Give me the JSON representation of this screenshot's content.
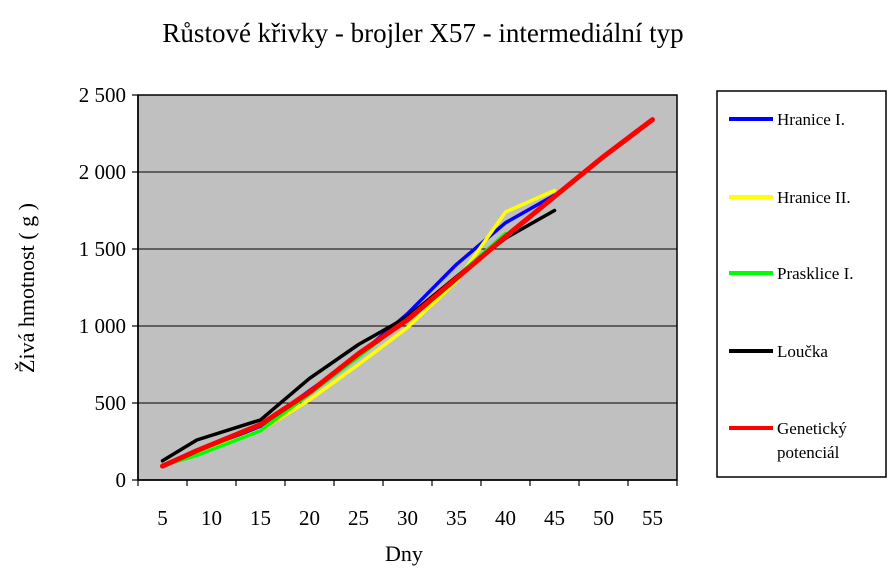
{
  "chart_data": {
    "type": "line",
    "title": "Růstové křivky  - brojler X57 - intermediální  typ",
    "xlabel": "Dny",
    "ylabel": "Živá hmotnost ( g )",
    "xlim": [
      5,
      55
    ],
    "ylim": [
      0,
      2500
    ],
    "x_ticks": [
      "5",
      "10",
      "15",
      "20",
      "25",
      "30",
      "35",
      "40",
      "45",
      "50",
      "55"
    ],
    "y_ticks": [
      {
        "value": 0,
        "label": "0"
      },
      {
        "value": 500,
        "label": "500"
      },
      {
        "value": 1000,
        "label": "1 000"
      },
      {
        "value": 1500,
        "label": "1 500"
      },
      {
        "value": 2000,
        "label": "2 000"
      },
      {
        "value": 2500,
        "label": "2 500"
      }
    ],
    "grid": true,
    "plot_background": "#c0c0c0",
    "legend_position": "right",
    "series": [
      {
        "name": "Hranice I.",
        "color": "#0000ff",
        "x": [
          5,
          8.5,
          15,
          20,
          25,
          30,
          35,
          40,
          45
        ],
        "y": [
          95,
          180,
          350,
          580,
          810,
          1080,
          1400,
          1670,
          1850
        ]
      },
      {
        "name": "Hranice II.",
        "color": "#ffff00",
        "x": [
          5,
          8.5,
          15,
          20,
          25,
          30,
          35,
          40,
          45
        ],
        "y": [
          90,
          170,
          320,
          520,
          750,
          990,
          1290,
          1740,
          1880
        ]
      },
      {
        "name": "Prasklice I.",
        "color": "#00ff00",
        "x": [
          5,
          8.5,
          15,
          20,
          25,
          30,
          35,
          40
        ],
        "y": [
          95,
          160,
          320,
          560,
          800,
          1050,
          1320,
          1600
        ]
      },
      {
        "name": "Loučka",
        "color": "#000000",
        "x": [
          5,
          8.5,
          15,
          20,
          25,
          30,
          35,
          40,
          45
        ],
        "y": [
          125,
          260,
          390,
          660,
          880,
          1060,
          1320,
          1570,
          1750
        ]
      },
      {
        "name": "Genetický potenciál",
        "name_lines": [
          "Genetický",
          "potenciál"
        ],
        "color": "#ff0000",
        "x": [
          5,
          8.5,
          15,
          20,
          25,
          30,
          35,
          40,
          45,
          50,
          55
        ],
        "y": [
          90,
          190,
          360,
          570,
          820,
          1040,
          1310,
          1580,
          1840,
          2100,
          2340
        ]
      }
    ]
  }
}
